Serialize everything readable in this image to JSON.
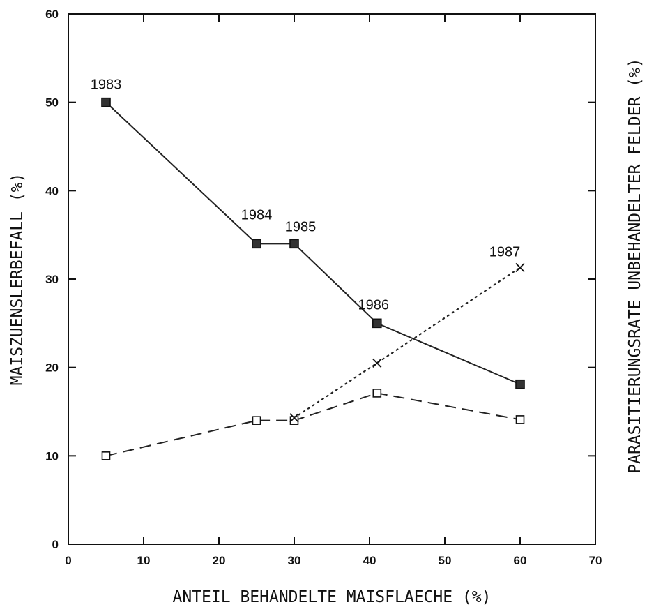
{
  "chart_data": {
    "type": "line",
    "xlabel": "ANTEIL BEHANDELTE MAISFLAECHE (%)",
    "ylabel": "MAISZUENSLERBEFALL (%)",
    "y2label": "PARASITIERUNGSRATE UNBEHANDELTER FELDER (%)",
    "xlim": [
      0,
      70
    ],
    "ylim": [
      0,
      60
    ],
    "xticks": [
      "0",
      "10",
      "20",
      "30",
      "40",
      "50",
      "60",
      "70"
    ],
    "yticks": [
      "0",
      "10",
      "20",
      "30",
      "40",
      "50",
      "60"
    ],
    "grid": false,
    "series": [
      {
        "style": "solid",
        "marker": "filled-square",
        "color": "#222222",
        "x": [
          5,
          25,
          30,
          41,
          60
        ],
        "y": [
          50,
          34,
          34,
          25,
          18.1
        ]
      },
      {
        "style": "dashed",
        "marker": "open-square",
        "color": "#222222",
        "x": [
          5,
          25,
          30,
          41,
          60
        ],
        "y": [
          10,
          14,
          14,
          17.1,
          14.1
        ]
      },
      {
        "style": "dotted",
        "marker": "cross",
        "color": "#222222",
        "x": [
          30,
          41,
          60
        ],
        "y": [
          14.3,
          20.5,
          31.3
        ]
      }
    ],
    "annotations": [
      {
        "text": "1983",
        "x": 5,
        "y": 50
      },
      {
        "text": "1984",
        "x": 25,
        "y": 34
      },
      {
        "text": "1985",
        "x": 30,
        "y": 34
      },
      {
        "text": "1986",
        "x": 41,
        "y": 25
      },
      {
        "text": "1987",
        "x": 60,
        "y": 31.3
      }
    ]
  }
}
